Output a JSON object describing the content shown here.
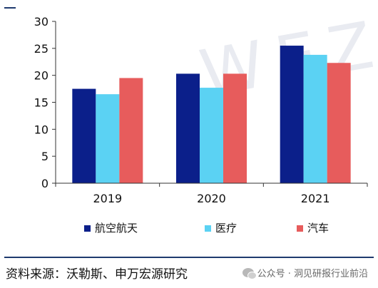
{
  "chart_data": {
    "type": "bar",
    "categories": [
      "2019",
      "2020",
      "2021"
    ],
    "series": [
      {
        "name": "航空航天",
        "values": [
          17.5,
          20.3,
          25.5
        ],
        "color": "#0b1f8a"
      },
      {
        "name": "医疗",
        "values": [
          16.5,
          17.7,
          23.8
        ],
        "color": "#5bd2f3"
      },
      {
        "name": "汽车",
        "values": [
          19.5,
          20.3,
          22.3
        ],
        "color": "#e75c5c"
      }
    ],
    "ylim": [
      0,
      30
    ],
    "yticks": [
      "0",
      "5",
      "10",
      "15",
      "20",
      "25",
      "30"
    ],
    "grid": false,
    "legend_position": "bottom"
  },
  "watermark": "WEZ",
  "source_text": "资料来源：沃勒斯、申万宏源研究",
  "wechat_caption": "公众号 · 洞见研报行业前沿",
  "icons": {
    "wechat": "wechat-icon"
  }
}
